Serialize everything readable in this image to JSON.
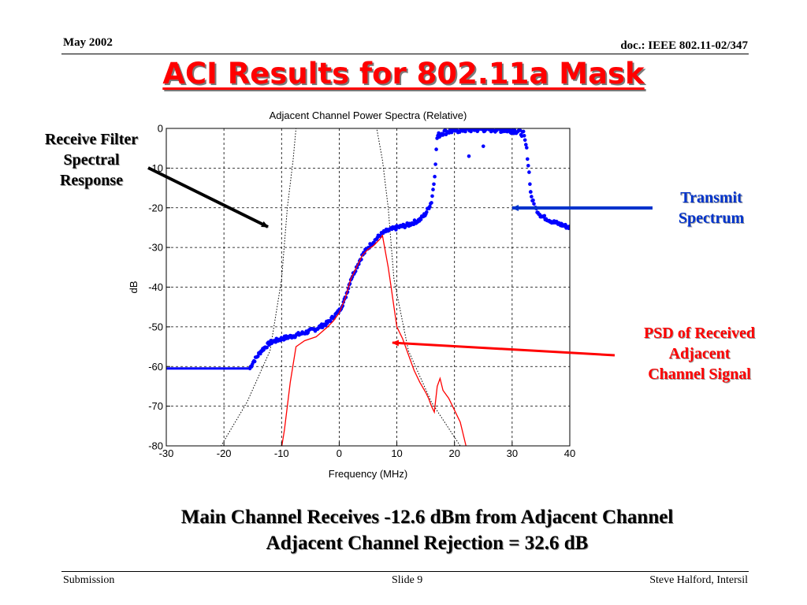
{
  "header": {
    "date": "May 2002",
    "doc": "doc.: IEEE 802.11-02/347"
  },
  "slide_title": "ACI Results for 802.11a Mask",
  "annotations": {
    "receive_filter": [
      "Receive Filter",
      "Spectral",
      "Response"
    ],
    "transmit": [
      "Transmit",
      "Spectrum"
    ],
    "psd": [
      "PSD of Received",
      "Adjacent",
      "Channel Signal"
    ]
  },
  "colors": {
    "title": "#ff0000",
    "transmit": "#0000ff",
    "psd": "#ff0000",
    "filter": "#000000"
  },
  "chart_data": {
    "type": "line",
    "title": "Adjacent Channel Power Spectra (Relative)",
    "xlabel": "Frequency (MHz)",
    "ylabel": "dB",
    "xlim": [
      -30,
      40
    ],
    "ylim": [
      -80,
      0
    ],
    "xticks": [
      -30,
      -20,
      -10,
      0,
      10,
      20,
      30,
      40
    ],
    "yticks": [
      0,
      -10,
      -20,
      -30,
      -40,
      -50,
      -60,
      -70,
      -80
    ],
    "grid": true,
    "series": [
      {
        "style": "dotted-black",
        "x": [
          -30,
          -20.5,
          -16,
          -12,
          -10,
          -9,
          -8,
          -7.5,
          6.5,
          7.5,
          8.5,
          9.5,
          12,
          16,
          21,
          30
        ],
        "y": [
          -85,
          -80,
          -69,
          -56,
          -38,
          -20,
          -8,
          0,
          0,
          -8,
          -20,
          -38,
          -56,
          -69,
          -80,
          -85
        ]
      },
      {
        "style": "markers-blue",
        "x": [
          -30,
          -15.5,
          -15,
          -14.5,
          -13.5,
          -12,
          -10,
          -8,
          -6,
          -4,
          -2,
          -1,
          0,
          1,
          2,
          3,
          4,
          5,
          6,
          7,
          8,
          10,
          12,
          14,
          15,
          16,
          16.5,
          17,
          18,
          20,
          22,
          24,
          26,
          28,
          30,
          31,
          32,
          32.5,
          33,
          33.2,
          33.5,
          34,
          35,
          37,
          39,
          40
        ],
        "y": [
          -60.5,
          -60.5,
          -59,
          -58,
          -56,
          -54,
          -53,
          -52.3,
          -51.5,
          -50.5,
          -49,
          -47.5,
          -46,
          -43,
          -38,
          -35,
          -32,
          -30,
          -28.5,
          -27,
          -26,
          -25,
          -24.3,
          -23,
          -21.5,
          -18.5,
          -13,
          -2,
          -1,
          -0.5,
          -0.3,
          -0.2,
          -0.2,
          -0.3,
          -0.5,
          -0.7,
          -1.5,
          -5,
          -12,
          -16,
          -18,
          -20,
          -22,
          -23.5,
          -24.5,
          -25
        ]
      },
      {
        "style": "line-red",
        "x": [
          -10.5,
          -9.5,
          -8.5,
          -7.5,
          -6,
          -4,
          -2,
          -1,
          0,
          1,
          2,
          3,
          4,
          5,
          6,
          7,
          7.5,
          8.5,
          9,
          9.5,
          10,
          11,
          12,
          13,
          14,
          15,
          15.5,
          16,
          16.5,
          17,
          17.5,
          18,
          18.5,
          19,
          20,
          21,
          22
        ],
        "y": [
          -85,
          -76,
          -64,
          -55,
          -53.5,
          -52.5,
          -50,
          -48.5,
          -46.5,
          -43,
          -38,
          -35,
          -32,
          -30.5,
          -29.5,
          -28,
          -27,
          -35,
          -40,
          -45,
          -50,
          -53,
          -57,
          -61,
          -64,
          -66.5,
          -68,
          -70,
          -71.5,
          -65,
          -63,
          -66,
          -67,
          -68,
          -71,
          -74,
          -80
        ]
      }
    ]
  },
  "bottom_note": [
    "Main Channel Receives -12.6 dBm from Adjacent Channel",
    "Adjacent Channel Rejection = 32.6 dB"
  ],
  "footer": {
    "left": "Submission",
    "center": "Slide 9",
    "right": "Steve Halford, Intersil"
  }
}
